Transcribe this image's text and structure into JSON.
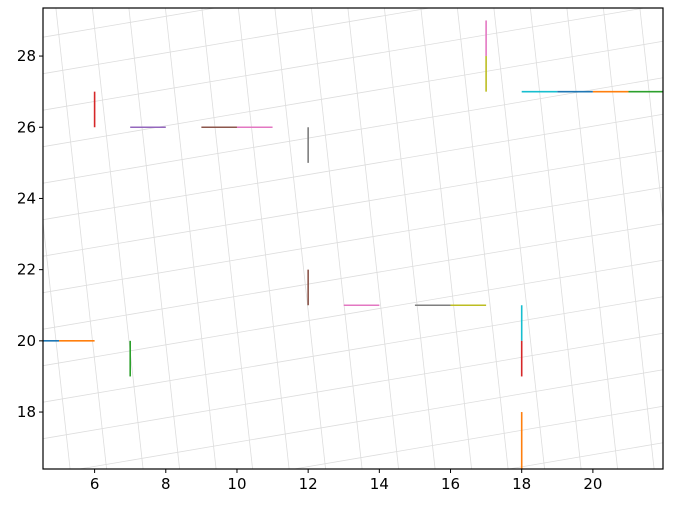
{
  "chart_data": {
    "type": "line",
    "title": "",
    "xlabel": "",
    "ylabel": "",
    "xlim": [
      4.55,
      21.97
    ],
    "ylim": [
      16.4,
      29.35
    ],
    "xticks": [
      "6",
      "8",
      "10",
      "12",
      "14",
      "16",
      "18",
      "20"
    ],
    "yticks": [
      "18",
      "20",
      "22",
      "24",
      "26",
      "28"
    ],
    "grid": "on (skewed light-gray grid)",
    "legend": "none",
    "segments": [
      {
        "x": [
          4.5,
          5
        ],
        "y": [
          20,
          20
        ],
        "color": "#1f77b4"
      },
      {
        "x": [
          5,
          6
        ],
        "y": [
          20,
          20
        ],
        "color": "#ff7f0e"
      },
      {
        "x": [
          7,
          7
        ],
        "y": [
          19,
          20
        ],
        "color": "#2ca02c"
      },
      {
        "x": [
          6,
          6
        ],
        "y": [
          26,
          27
        ],
        "color": "#d62728"
      },
      {
        "x": [
          7,
          8
        ],
        "y": [
          26,
          26
        ],
        "color": "#9467bd"
      },
      {
        "x": [
          9,
          10
        ],
        "y": [
          26,
          26
        ],
        "color": "#8c564b"
      },
      {
        "x": [
          10,
          11
        ],
        "y": [
          26,
          26
        ],
        "color": "#e377c2"
      },
      {
        "x": [
          12,
          12
        ],
        "y": [
          25,
          26
        ],
        "color": "#7f7f7f"
      },
      {
        "x": [
          12,
          12
        ],
        "y": [
          21,
          22
        ],
        "color": "#8c564b"
      },
      {
        "x": [
          13,
          14
        ],
        "y": [
          21,
          21
        ],
        "color": "#e377c2"
      },
      {
        "x": [
          15,
          16
        ],
        "y": [
          21,
          21
        ],
        "color": "#7f7f7f"
      },
      {
        "x": [
          16,
          17
        ],
        "y": [
          21,
          21
        ],
        "color": "#bcbd22"
      },
      {
        "x": [
          18,
          18
        ],
        "y": [
          20,
          21
        ],
        "color": "#17becf"
      },
      {
        "x": [
          18,
          18
        ],
        "y": [
          19,
          20
        ],
        "color": "#d62728"
      },
      {
        "x": [
          18,
          18
        ],
        "y": [
          16,
          18
        ],
        "color": "#ff7f0e"
      },
      {
        "x": [
          17,
          17
        ],
        "y": [
          28,
          29
        ],
        "color": "#e377c2"
      },
      {
        "x": [
          17,
          17
        ],
        "y": [
          27,
          28
        ],
        "color": "#bcbd22"
      },
      {
        "x": [
          18,
          19
        ],
        "y": [
          27,
          27
        ],
        "color": "#17becf"
      },
      {
        "x": [
          19,
          20
        ],
        "y": [
          27,
          27
        ],
        "color": "#1f77b4"
      },
      {
        "x": [
          20,
          21
        ],
        "y": [
          27,
          27
        ],
        "color": "#ff7f0e"
      },
      {
        "x": [
          21,
          22
        ],
        "y": [
          27,
          27
        ],
        "color": "#2ca02c"
      }
    ]
  }
}
